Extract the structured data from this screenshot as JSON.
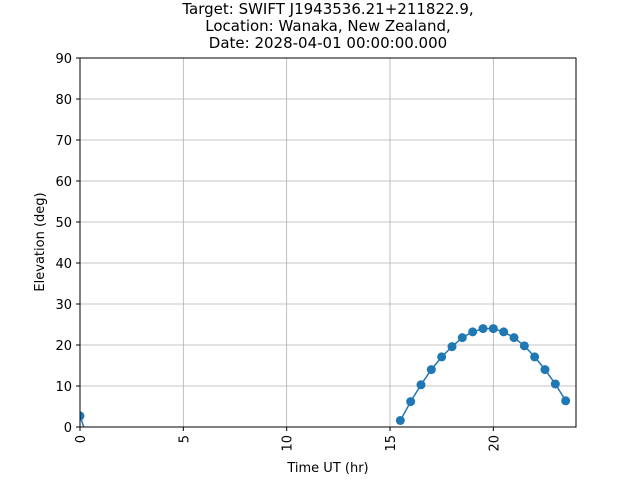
{
  "chart_data": {
    "type": "line",
    "title_lines": [
      "Target: SWIFT J1943536.21+211822.9,",
      "Location: Wanaka, New Zealand,",
      "Date: 2028-04-01 00:00:00.000"
    ],
    "xlabel": "Time UT (hr)",
    "ylabel": "Elevation (deg)",
    "xlim": [
      0,
      24
    ],
    "ylim": [
      0,
      90
    ],
    "xticks": [
      0,
      5,
      10,
      15,
      20
    ],
    "yticks": [
      0,
      10,
      20,
      30,
      40,
      50,
      60,
      70,
      80,
      90
    ],
    "grid": true,
    "series_color": "#1f77b4",
    "segments": [
      {
        "x": [
          0.0,
          0.25
        ],
        "y": [
          2.7,
          -1.0
        ],
        "markers": [
          true,
          false
        ]
      },
      {
        "x": [
          15.5,
          16.0,
          16.5,
          17.0,
          17.5,
          18.0,
          18.5,
          19.0,
          19.5,
          20.0,
          20.5,
          21.0,
          21.5,
          22.0,
          22.5,
          23.0,
          23.5
        ],
        "y": [
          1.6,
          6.2,
          10.3,
          14.0,
          17.1,
          19.6,
          21.8,
          23.2,
          24.0,
          24.0,
          23.2,
          21.8,
          19.8,
          17.1,
          14.0,
          10.5,
          6.4
        ],
        "markers": [
          true,
          true,
          true,
          true,
          true,
          true,
          true,
          true,
          true,
          true,
          true,
          true,
          true,
          true,
          true,
          true,
          true
        ]
      }
    ]
  }
}
